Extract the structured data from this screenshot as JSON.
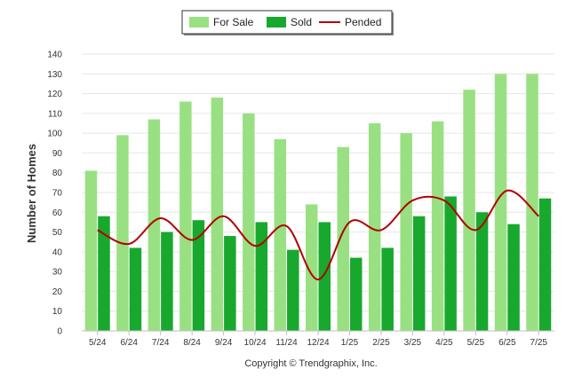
{
  "chart_data": {
    "type": "bar",
    "categories": [
      "5/24",
      "6/24",
      "7/24",
      "8/24",
      "9/24",
      "10/24",
      "11/24",
      "12/24",
      "1/25",
      "2/25",
      "3/25",
      "4/25",
      "5/25",
      "6/25",
      "7/25"
    ],
    "series": [
      {
        "name": "For Sale",
        "type": "bar",
        "color": "#99e083",
        "values": [
          81,
          99,
          107,
          116,
          118,
          110,
          97,
          64,
          93,
          105,
          100,
          106,
          122,
          130,
          130
        ]
      },
      {
        "name": "Sold",
        "type": "bar",
        "color": "#18a82e",
        "values": [
          58,
          42,
          50,
          56,
          48,
          55,
          41,
          55,
          37,
          42,
          58,
          68,
          60,
          54,
          67
        ]
      },
      {
        "name": "Pended",
        "type": "line",
        "color": "#b30000",
        "values": [
          51,
          44,
          57,
          46,
          58,
          43,
          53,
          26,
          55,
          51,
          66,
          66,
          51,
          71,
          58
        ]
      }
    ],
    "title": "",
    "xlabel": "",
    "ylabel": "Number of Homes",
    "ylim": [
      0,
      140
    ],
    "yticks": [
      0,
      10,
      20,
      30,
      40,
      50,
      60,
      70,
      80,
      90,
      100,
      110,
      120,
      130,
      140
    ],
    "grid": true,
    "legend": "top-center"
  },
  "footer": {
    "copyright": "Copyright © Trendgraphix, Inc."
  }
}
